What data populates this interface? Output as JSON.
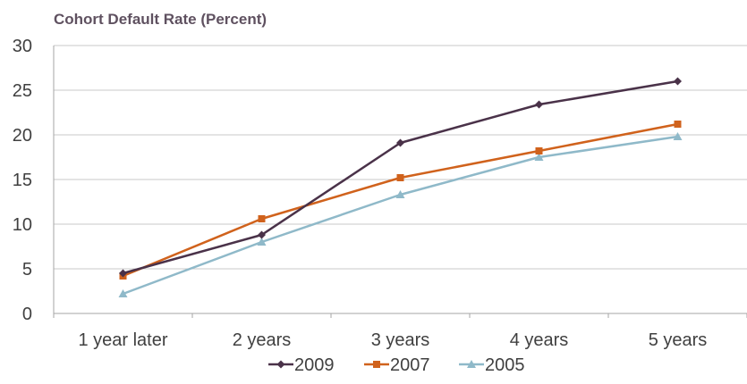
{
  "chart_data": {
    "type": "line",
    "title": "Cohort Default Rate (Percent)",
    "xlabel": "",
    "ylabel": "",
    "categories": [
      "1 year later",
      "2 years",
      "3 years",
      "4 years",
      "5 years"
    ],
    "ylim": [
      0,
      30
    ],
    "yticks": [
      0,
      5,
      10,
      15,
      20,
      25,
      30
    ],
    "grid": true,
    "legend_position": "bottom",
    "series": [
      {
        "name": "2009",
        "color": "#4a3249",
        "marker": "diamond",
        "values": [
          4.5,
          8.8,
          19.1,
          23.4,
          26.0
        ]
      },
      {
        "name": "2007",
        "color": "#d0621c",
        "marker": "square",
        "values": [
          4.2,
          10.6,
          15.2,
          18.2,
          21.2
        ]
      },
      {
        "name": "2005",
        "color": "#8fb9c9",
        "marker": "triangle",
        "values": [
          2.2,
          8.0,
          13.3,
          17.5,
          19.8
        ]
      }
    ]
  }
}
